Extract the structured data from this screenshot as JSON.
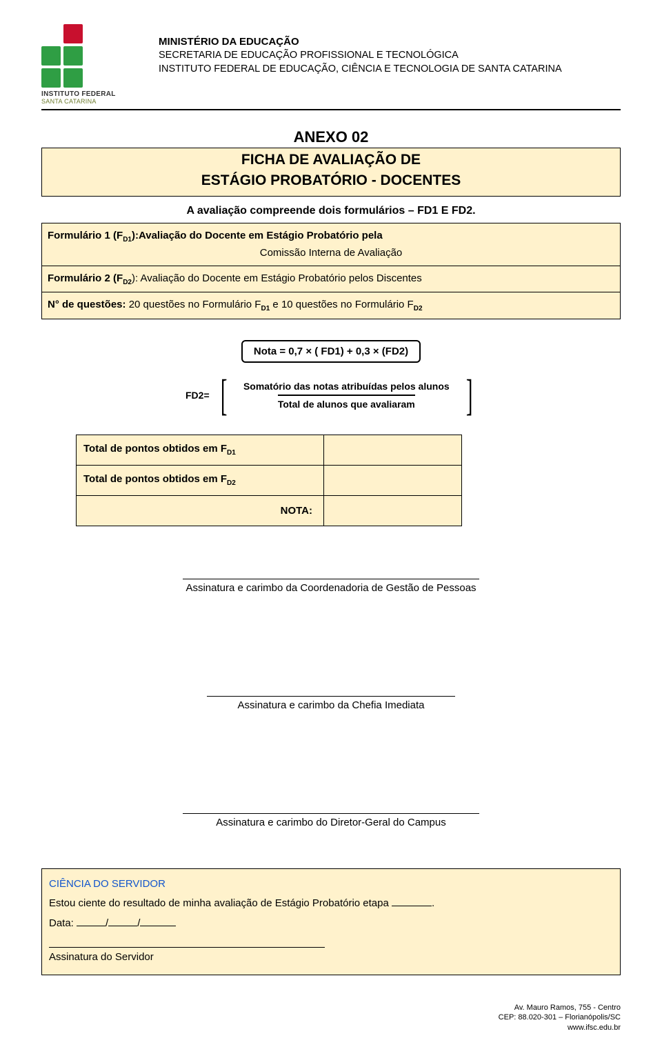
{
  "header": {
    "logo_label1": "INSTITUTO FEDERAL",
    "logo_label2": "SANTA CATARINA",
    "line1": "MINISTÉRIO DA EDUCAÇÃO",
    "line2": "SECRETARIA DE EDUCAÇÃO PROFISSIONAL E TECNOLÓGICA",
    "line3": "INSTITUTO FEDERAL DE EDUCAÇÃO, CIÊNCIA E TECNOLOGIA DE SANTA CATARINA"
  },
  "title": {
    "anexo": "ANEXO 02",
    "line1": "FICHA DE AVALIAÇÃO DE",
    "line2": "ESTÁGIO PROBATÓRIO - DOCENTES"
  },
  "intro": "A avaliação compreende dois formulários – FD1 E FD2.",
  "boxes": {
    "form1_a": "Formulário 1 (F",
    "form1_sub": "D1",
    "form1_b": "):Avaliação do Docente em Estágio Probatório pela",
    "form1_c": "Comissão Interna de Avaliação",
    "form2_a": "Formulário 2 (F",
    "form2_sub": "D2",
    "form2_b": "): Avaliação do Docente em Estágio Probatório pelos Discentes",
    "nq_a": "N° de questões:",
    "nq_b": " 20 questões no Formulário F",
    "nq_sub1": "D1",
    "nq_c": " e 10 questões no Formulário F",
    "nq_sub2": "D2"
  },
  "formula": {
    "text": "Nota = 0,7 × ( FD1) +  0,3 ×  (FD2)",
    "fd2": "FD2=",
    "num": "Somatório das notas atribuídas pelos alunos",
    "den": "Total de alunos que avaliaram"
  },
  "points": {
    "row1_a": "Total de pontos obtidos em F",
    "row1_sub": "D1",
    "row2_a": "Total de pontos obtidos em F",
    "row2_sub": "D2",
    "nota": "NOTA:"
  },
  "signatures": {
    "s1": "Assinatura e carimbo da Coordenadoria de Gestão de Pessoas",
    "s2": "Assinatura e carimbo da Chefia Imediata",
    "s3": "Assinatura e carimbo do Diretor-Geral do Campus"
  },
  "ciencia": {
    "title": "CIÊNCIA DO SERVIDOR",
    "line_a": "Estou ciente do resultado de minha avaliação de Estágio Probatório etapa ",
    "line_end": ".",
    "data": "Data: ",
    "sep": "/",
    "sig": "Assinatura do Servidor"
  },
  "footer": {
    "l1": "Av. Mauro Ramos, 755 - Centro",
    "l2": "CEP: 88.020-301 – Florianópolis/SC",
    "l3": "www.ifsc.edu.br"
  },
  "colors": {
    "yellow": "#fff2cc",
    "red": "#c8102e",
    "green": "#2f9e44",
    "link": "#1155cc"
  }
}
